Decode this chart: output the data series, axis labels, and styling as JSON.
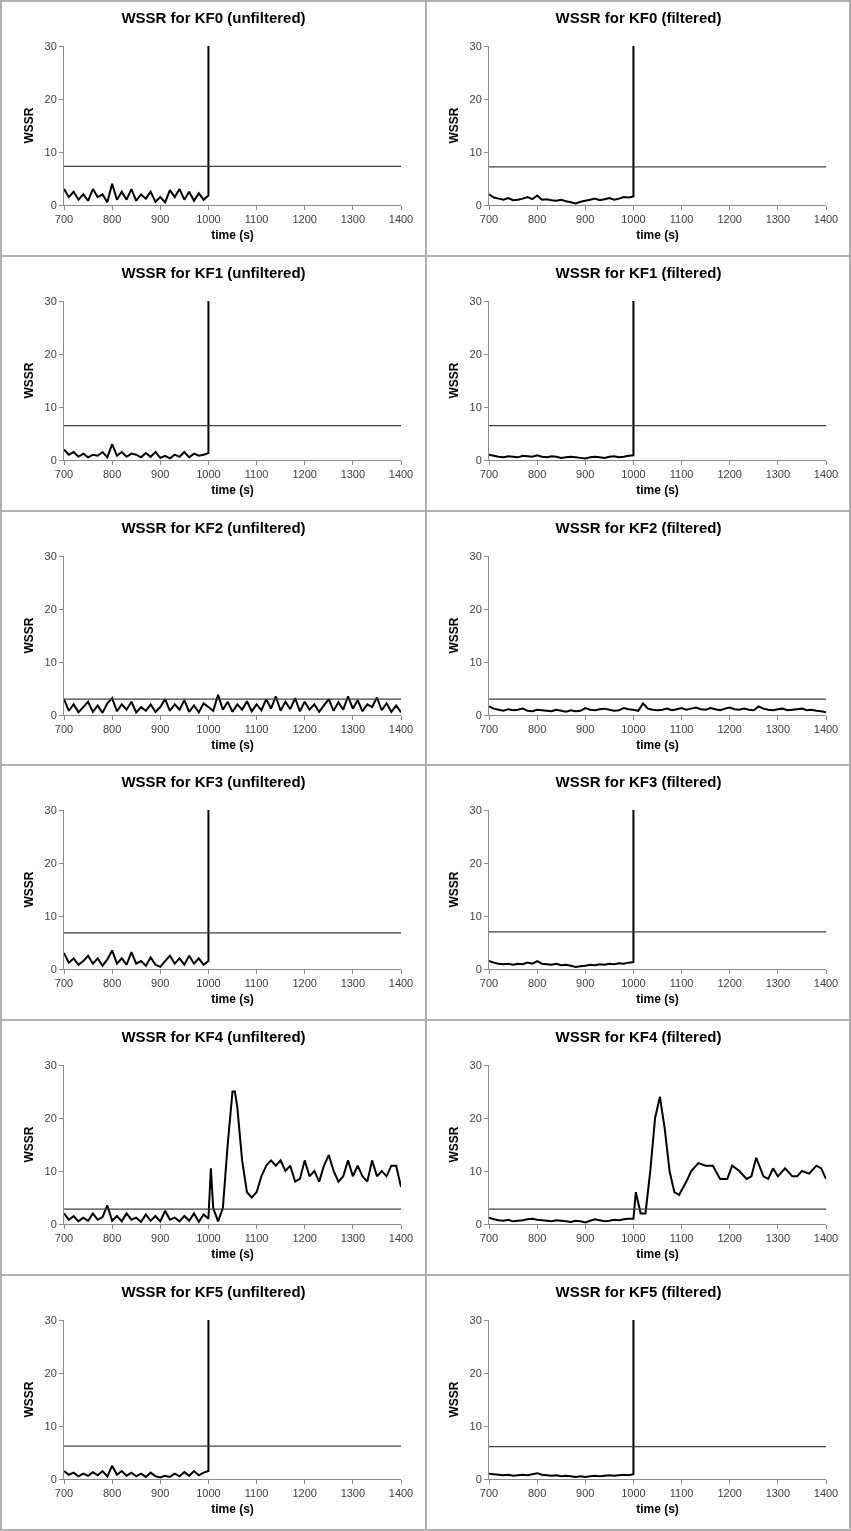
{
  "chart_data": [
    {
      "type": "line",
      "title": "WSSR for KF0 (unfiltered)",
      "xlabel": "time (s)",
      "ylabel": "WSSR",
      "xlim": [
        700,
        1400
      ],
      "xticks": [
        700,
        800,
        900,
        1000,
        1100,
        1200,
        1300,
        1400
      ],
      "ylim": [
        0,
        30
      ],
      "yticks": [
        0,
        10,
        20,
        30
      ],
      "grid": false,
      "legend": false,
      "ref_lines": [
        {
          "axis": "y",
          "value": 7.3,
          "color": "#404040"
        }
      ],
      "series": [
        {
          "color": "#000000",
          "x": [
            700,
            710,
            720,
            730,
            740,
            750,
            760,
            770,
            780,
            790,
            800,
            810,
            820,
            830,
            840,
            850,
            860,
            870,
            880,
            890,
            900,
            910,
            920,
            930,
            940,
            950,
            960,
            970,
            980,
            990,
            1000,
            1000
          ],
          "values": [
            3,
            1.5,
            2.5,
            1,
            2,
            0.8,
            3,
            1.5,
            2,
            0.5,
            4,
            1,
            2.5,
            1,
            3,
            0.8,
            2,
            1.2,
            2.5,
            0.6,
            1.5,
            0.5,
            2.8,
            1.5,
            3,
            1,
            2.5,
            0.8,
            2.2,
            1,
            1.8,
            30
          ]
        }
      ]
    },
    {
      "type": "line",
      "title": "WSSR for KF0 (filtered)",
      "xlabel": "time (s)",
      "ylabel": "WSSR",
      "xlim": [
        700,
        1400
      ],
      "xticks": [
        700,
        800,
        900,
        1000,
        1100,
        1200,
        1300,
        1400
      ],
      "ylim": [
        0,
        30
      ],
      "yticks": [
        0,
        10,
        20,
        30
      ],
      "grid": false,
      "legend": false,
      "ref_lines": [
        {
          "axis": "y",
          "value": 7.2,
          "color": "#404040"
        }
      ],
      "series": [
        {
          "color": "#000000",
          "x": [
            700,
            710,
            720,
            730,
            740,
            750,
            760,
            770,
            780,
            790,
            800,
            810,
            820,
            830,
            840,
            850,
            860,
            870,
            880,
            890,
            900,
            910,
            920,
            930,
            940,
            950,
            960,
            970,
            980,
            990,
            1000,
            1000
          ],
          "values": [
            2,
            1.4,
            1.2,
            1,
            1.3,
            0.9,
            1,
            1.2,
            1.5,
            1.1,
            1.8,
            1,
            1.1,
            0.9,
            0.8,
            1,
            0.7,
            0.5,
            0.3,
            0.6,
            0.8,
            1,
            1.2,
            0.9,
            1.1,
            1.3,
            1,
            1.2,
            1.5,
            1.4,
            1.6,
            30
          ]
        }
      ]
    },
    {
      "type": "line",
      "title": "WSSR for KF1 (unfiltered)",
      "xlabel": "time (s)",
      "ylabel": "WSSR",
      "xlim": [
        700,
        1400
      ],
      "xticks": [
        700,
        800,
        900,
        1000,
        1100,
        1200,
        1300,
        1400
      ],
      "ylim": [
        0,
        30
      ],
      "yticks": [
        0,
        10,
        20,
        30
      ],
      "grid": false,
      "legend": false,
      "ref_lines": [
        {
          "axis": "y",
          "value": 6.5,
          "color": "#404040"
        }
      ],
      "series": [
        {
          "color": "#000000",
          "x": [
            700,
            710,
            720,
            730,
            740,
            750,
            760,
            770,
            780,
            790,
            800,
            810,
            820,
            830,
            840,
            850,
            860,
            870,
            880,
            890,
            900,
            910,
            920,
            930,
            940,
            950,
            960,
            970,
            980,
            990,
            1000,
            1000
          ],
          "values": [
            2,
            1,
            1.5,
            0.6,
            1.2,
            0.5,
            1,
            0.8,
            1.5,
            0.5,
            3,
            0.8,
            1.5,
            0.6,
            1.2,
            1,
            0.5,
            1.3,
            0.6,
            1.5,
            0.4,
            0.8,
            0.3,
            1,
            0.6,
            1.5,
            0.5,
            1.2,
            0.8,
            1,
            1.3,
            30
          ]
        }
      ]
    },
    {
      "type": "line",
      "title": "WSSR for KF1 (filtered)",
      "xlabel": "time (s)",
      "ylabel": "WSSR",
      "xlim": [
        700,
        1400
      ],
      "xticks": [
        700,
        800,
        900,
        1000,
        1100,
        1200,
        1300,
        1400
      ],
      "ylim": [
        0,
        30
      ],
      "yticks": [
        0,
        10,
        20,
        30
      ],
      "grid": false,
      "legend": false,
      "ref_lines": [
        {
          "axis": "y",
          "value": 6.5,
          "color": "#404040"
        }
      ],
      "series": [
        {
          "color": "#000000",
          "x": [
            700,
            710,
            720,
            730,
            740,
            750,
            760,
            770,
            780,
            790,
            800,
            810,
            820,
            830,
            840,
            850,
            860,
            870,
            880,
            890,
            900,
            910,
            920,
            930,
            940,
            950,
            960,
            970,
            980,
            990,
            1000,
            1000
          ],
          "values": [
            1,
            0.8,
            0.6,
            0.5,
            0.7,
            0.6,
            0.5,
            0.8,
            0.7,
            0.6,
            0.9,
            0.6,
            0.5,
            0.7,
            0.6,
            0.4,
            0.5,
            0.6,
            0.5,
            0.4,
            0.3,
            0.5,
            0.6,
            0.5,
            0.4,
            0.6,
            0.7,
            0.5,
            0.6,
            0.8,
            0.9,
            30
          ]
        }
      ]
    },
    {
      "type": "line",
      "title": "WSSR for KF2 (unfiltered)",
      "xlabel": "time (s)",
      "ylabel": "WSSR",
      "xlim": [
        700,
        1400
      ],
      "xticks": [
        700,
        800,
        900,
        1000,
        1100,
        1200,
        1300,
        1400
      ],
      "ylim": [
        0,
        30
      ],
      "yticks": [
        0,
        10,
        20,
        30
      ],
      "grid": false,
      "legend": false,
      "ref_lines": [
        {
          "axis": "y",
          "value": 3,
          "color": "#404040"
        }
      ],
      "series": [
        {
          "color": "#000000",
          "x": [
            700,
            710,
            720,
            730,
            740,
            750,
            760,
            770,
            780,
            790,
            800,
            810,
            820,
            830,
            840,
            850,
            860,
            870,
            880,
            890,
            900,
            910,
            920,
            930,
            940,
            950,
            960,
            970,
            980,
            990,
            1000,
            1010,
            1020,
            1030,
            1040,
            1050,
            1060,
            1070,
            1080,
            1090,
            1100,
            1110,
            1120,
            1130,
            1140,
            1150,
            1160,
            1170,
            1180,
            1190,
            1200,
            1210,
            1220,
            1230,
            1240,
            1250,
            1260,
            1270,
            1280,
            1290,
            1300,
            1310,
            1320,
            1330,
            1340,
            1350,
            1360,
            1370,
            1380,
            1390,
            1400
          ],
          "values": [
            3,
            0.8,
            2,
            0.5,
            1.5,
            2.5,
            0.6,
            1.8,
            0.4,
            2.2,
            3.2,
            0.7,
            2,
            1,
            2.5,
            0.5,
            1.5,
            0.8,
            2,
            0.6,
            1.5,
            3,
            0.8,
            2,
            1,
            2.8,
            0.6,
            1.8,
            0.5,
            2.2,
            1.5,
            0.8,
            3.8,
            1,
            2.5,
            0.6,
            2,
            1,
            2.6,
            0.7,
            2,
            0.9,
            3,
            1.2,
            3.5,
            0.8,
            2.5,
            1.1,
            3.2,
            0.7,
            2.5,
            1,
            2,
            0.6,
            1.8,
            3,
            0.8,
            2.4,
            1,
            3.5,
            1.2,
            2.8,
            0.7,
            2,
            1.5,
            3.3,
            0.9,
            2.2,
            0.6,
            1.8,
            0.5
          ]
        }
      ]
    },
    {
      "type": "line",
      "title": "WSSR for KF2 (filtered)",
      "xlabel": "time (s)",
      "ylabel": "WSSR",
      "xlim": [
        700,
        1400
      ],
      "xticks": [
        700,
        800,
        900,
        1000,
        1100,
        1200,
        1300,
        1400
      ],
      "ylim": [
        0,
        30
      ],
      "yticks": [
        0,
        10,
        20,
        30
      ],
      "grid": false,
      "legend": false,
      "ref_lines": [
        {
          "axis": "y",
          "value": 3,
          "color": "#404040"
        }
      ],
      "series": [
        {
          "color": "#000000",
          "x": [
            700,
            710,
            720,
            730,
            740,
            750,
            760,
            770,
            780,
            790,
            800,
            810,
            820,
            830,
            840,
            850,
            860,
            870,
            880,
            890,
            900,
            910,
            920,
            930,
            940,
            950,
            960,
            970,
            980,
            990,
            1000,
            1010,
            1020,
            1030,
            1040,
            1050,
            1060,
            1070,
            1080,
            1090,
            1100,
            1110,
            1120,
            1130,
            1140,
            1150,
            1160,
            1170,
            1180,
            1190,
            1200,
            1210,
            1220,
            1230,
            1240,
            1250,
            1260,
            1270,
            1280,
            1290,
            1300,
            1310,
            1320,
            1330,
            1340,
            1350,
            1360,
            1370,
            1380,
            1390,
            1400
          ],
          "values": [
            1.6,
            1.2,
            1,
            0.8,
            1.1,
            0.9,
            1,
            1.2,
            0.8,
            0.7,
            1,
            0.9,
            0.8,
            0.7,
            1,
            0.8,
            0.6,
            0.9,
            0.7,
            0.8,
            1.3,
            1,
            0.9,
            1.1,
            1.2,
            1,
            0.8,
            0.9,
            1.3,
            1.1,
            1,
            0.8,
            2.2,
            1.2,
            1,
            0.9,
            1,
            1.2,
            0.9,
            1.1,
            1.3,
            1,
            1.2,
            1.4,
            1.1,
            1,
            1.3,
            1.1,
            0.9,
            1.2,
            1.4,
            1.1,
            1,
            1.2,
            1,
            0.9,
            1.6,
            1.2,
            1,
            0.9,
            1.1,
            1.2,
            0.9,
            1,
            1.1,
            1.2,
            0.9,
            1,
            0.8,
            0.7,
            0.5
          ]
        }
      ]
    },
    {
      "type": "line",
      "title": "WSSR for KF3 (unfiltered)",
      "xlabel": "time (s)",
      "ylabel": "WSSR",
      "xlim": [
        700,
        1400
      ],
      "xticks": [
        700,
        800,
        900,
        1000,
        1100,
        1200,
        1300,
        1400
      ],
      "ylim": [
        0,
        30
      ],
      "yticks": [
        0,
        10,
        20,
        30
      ],
      "grid": false,
      "legend": false,
      "ref_lines": [
        {
          "axis": "y",
          "value": 6.8,
          "color": "#404040"
        }
      ],
      "series": [
        {
          "color": "#000000",
          "x": [
            700,
            710,
            720,
            730,
            740,
            750,
            760,
            770,
            780,
            790,
            800,
            810,
            820,
            830,
            840,
            850,
            860,
            870,
            880,
            890,
            900,
            910,
            920,
            930,
            940,
            950,
            960,
            970,
            980,
            990,
            1000,
            1000
          ],
          "values": [
            3,
            1.2,
            2,
            0.8,
            1.5,
            2.5,
            1,
            2,
            0.6,
            1.8,
            3.5,
            1,
            2,
            0.8,
            3.2,
            1,
            1.5,
            0.6,
            2.2,
            0.8,
            0.4,
            1.5,
            2.5,
            1,
            2,
            0.8,
            2.5,
            1,
            2,
            0.8,
            1.5,
            30
          ]
        }
      ]
    },
    {
      "type": "line",
      "title": "WSSR for KF3 (filtered)",
      "xlabel": "time (s)",
      "ylabel": "WSSR",
      "xlim": [
        700,
        1400
      ],
      "xticks": [
        700,
        800,
        900,
        1000,
        1100,
        1200,
        1300,
        1400
      ],
      "ylim": [
        0,
        30
      ],
      "yticks": [
        0,
        10,
        20,
        30
      ],
      "grid": false,
      "legend": false,
      "ref_lines": [
        {
          "axis": "y",
          "value": 7,
          "color": "#404040"
        }
      ],
      "series": [
        {
          "color": "#000000",
          "x": [
            700,
            710,
            720,
            730,
            740,
            750,
            760,
            770,
            780,
            790,
            800,
            810,
            820,
            830,
            840,
            850,
            860,
            870,
            880,
            890,
            900,
            910,
            920,
            930,
            940,
            950,
            960,
            970,
            980,
            990,
            1000,
            1000
          ],
          "values": [
            1.5,
            1.2,
            1,
            0.9,
            1,
            0.8,
            1,
            0.9,
            1.2,
            1,
            1.5,
            1,
            0.9,
            0.8,
            1,
            0.7,
            0.8,
            0.6,
            0.4,
            0.5,
            0.6,
            0.8,
            0.7,
            0.9,
            0.8,
            1,
            0.9,
            1.1,
            1,
            1.2,
            1.3,
            30
          ]
        }
      ]
    },
    {
      "type": "line",
      "title": "WSSR for KF4 (unfiltered)",
      "xlabel": "time (s)",
      "ylabel": "WSSR",
      "xlim": [
        700,
        1400
      ],
      "xticks": [
        700,
        800,
        900,
        1000,
        1100,
        1200,
        1300,
        1400
      ],
      "ylim": [
        0,
        30
      ],
      "yticks": [
        0,
        10,
        20,
        30
      ],
      "grid": false,
      "legend": false,
      "ref_lines": [
        {
          "axis": "y",
          "value": 2.8,
          "color": "#404040"
        }
      ],
      "series": [
        {
          "color": "#000000",
          "x": [
            700,
            710,
            720,
            730,
            740,
            750,
            760,
            770,
            780,
            790,
            800,
            810,
            820,
            830,
            840,
            850,
            860,
            870,
            880,
            890,
            900,
            910,
            920,
            930,
            940,
            950,
            960,
            970,
            980,
            990,
            1000,
            1005,
            1010,
            1020,
            1030,
            1040,
            1050,
            1055,
            1060,
            1070,
            1080,
            1090,
            1100,
            1110,
            1120,
            1130,
            1140,
            1150,
            1160,
            1170,
            1180,
            1190,
            1200,
            1210,
            1220,
            1230,
            1240,
            1250,
            1260,
            1270,
            1280,
            1290,
            1300,
            1310,
            1320,
            1330,
            1340,
            1350,
            1360,
            1370,
            1380,
            1390,
            1400
          ],
          "values": [
            2,
            0.8,
            1.5,
            0.5,
            1.2,
            0.6,
            2,
            0.8,
            1.3,
            3.5,
            0.6,
            1.5,
            0.5,
            2,
            0.8,
            1.2,
            0.4,
            1.8,
            0.6,
            1.5,
            0.5,
            2.5,
            0.8,
            1.2,
            0.5,
            1.5,
            0.6,
            2,
            0.4,
            1.8,
            1,
            10.5,
            3,
            0.5,
            3,
            15,
            25,
            25,
            22,
            12,
            6,
            5,
            6,
            9,
            11,
            12,
            11,
            12,
            10,
            11,
            8,
            8.5,
            12,
            9,
            10,
            8,
            11,
            13,
            10,
            8,
            9,
            12,
            9,
            11,
            9,
            8,
            12,
            9,
            10,
            9,
            11,
            11,
            7
          ]
        }
      ]
    },
    {
      "type": "line",
      "title": "WSSR for KF4 (filtered)",
      "xlabel": "time (s)",
      "ylabel": "WSSR",
      "xlim": [
        700,
        1400
      ],
      "xticks": [
        700,
        800,
        900,
        1000,
        1100,
        1200,
        1300,
        1400
      ],
      "ylim": [
        0,
        30
      ],
      "yticks": [
        0,
        10,
        20,
        30
      ],
      "grid": false,
      "legend": false,
      "ref_lines": [
        {
          "axis": "y",
          "value": 2.8,
          "color": "#404040"
        }
      ],
      "series": [
        {
          "color": "#000000",
          "x": [
            700,
            710,
            720,
            730,
            740,
            750,
            760,
            770,
            780,
            790,
            800,
            810,
            820,
            830,
            840,
            850,
            860,
            870,
            880,
            890,
            900,
            910,
            920,
            930,
            940,
            950,
            960,
            970,
            980,
            990,
            1000,
            1005,
            1015,
            1025,
            1035,
            1045,
            1055,
            1065,
            1075,
            1085,
            1095,
            1110,
            1120,
            1135,
            1150,
            1165,
            1180,
            1195,
            1205,
            1220,
            1235,
            1245,
            1255,
            1270,
            1280,
            1290,
            1300,
            1315,
            1330,
            1340,
            1350,
            1365,
            1380,
            1390,
            1400
          ],
          "values": [
            1.2,
            0.9,
            0.7,
            0.6,
            0.8,
            0.5,
            0.6,
            0.7,
            0.9,
            1,
            0.8,
            0.7,
            0.6,
            0.5,
            0.7,
            0.6,
            0.5,
            0.4,
            0.6,
            0.5,
            0.3,
            0.6,
            0.9,
            0.7,
            0.5,
            0.6,
            0.8,
            0.7,
            0.9,
            1,
            1,
            6,
            2,
            2,
            10,
            20,
            24,
            18,
            10,
            6,
            5.5,
            8,
            10,
            11.5,
            11,
            11,
            8.5,
            8.5,
            11,
            10,
            8.5,
            9,
            12.5,
            9,
            8.5,
            10.5,
            9,
            10.5,
            9,
            9,
            10,
            9.5,
            11,
            10.5,
            8.5
          ]
        }
      ]
    },
    {
      "type": "line",
      "title": "WSSR for KF5 (unfiltered)",
      "xlabel": "time (s)",
      "ylabel": "WSSR",
      "xlim": [
        700,
        1400
      ],
      "xticks": [
        700,
        800,
        900,
        1000,
        1100,
        1200,
        1300,
        1400
      ],
      "ylim": [
        0,
        30
      ],
      "yticks": [
        0,
        10,
        20,
        30
      ],
      "grid": false,
      "legend": false,
      "ref_lines": [
        {
          "axis": "y",
          "value": 6.2,
          "color": "#404040"
        }
      ],
      "series": [
        {
          "color": "#000000",
          "x": [
            700,
            710,
            720,
            730,
            740,
            750,
            760,
            770,
            780,
            790,
            800,
            810,
            820,
            830,
            840,
            850,
            860,
            870,
            880,
            890,
            900,
            910,
            920,
            930,
            940,
            950,
            960,
            970,
            980,
            990,
            1000,
            1000
          ],
          "values": [
            1.5,
            0.8,
            1.2,
            0.5,
            1,
            0.6,
            1.3,
            0.7,
            1.5,
            0.5,
            2.5,
            0.8,
            1.5,
            0.6,
            1.2,
            0.5,
            1,
            0.4,
            1.2,
            0.5,
            0.3,
            0.6,
            0.4,
            1,
            0.5,
            1.3,
            0.6,
            1.5,
            0.7,
            1.2,
            1.5,
            30
          ]
        }
      ]
    },
    {
      "type": "line",
      "title": "WSSR for KF5 (filtered)",
      "xlabel": "time (s)",
      "ylabel": "WSSR",
      "xlim": [
        700,
        1400
      ],
      "xticks": [
        700,
        800,
        900,
        1000,
        1100,
        1200,
        1300,
        1400
      ],
      "ylim": [
        0,
        30
      ],
      "yticks": [
        0,
        10,
        20,
        30
      ],
      "grid": false,
      "legend": false,
      "ref_lines": [
        {
          "axis": "y",
          "value": 6.1,
          "color": "#404040"
        }
      ],
      "series": [
        {
          "color": "#000000",
          "x": [
            700,
            710,
            720,
            730,
            740,
            750,
            760,
            770,
            780,
            790,
            800,
            810,
            820,
            830,
            840,
            850,
            860,
            870,
            880,
            890,
            900,
            910,
            920,
            930,
            940,
            950,
            960,
            970,
            980,
            990,
            1000,
            1000
          ],
          "values": [
            1,
            0.9,
            0.8,
            0.7,
            0.8,
            0.6,
            0.7,
            0.8,
            0.7,
            0.9,
            1.1,
            0.8,
            0.7,
            0.6,
            0.7,
            0.5,
            0.6,
            0.5,
            0.4,
            0.5,
            0.4,
            0.5,
            0.6,
            0.5,
            0.6,
            0.7,
            0.6,
            0.7,
            0.8,
            0.7,
            0.9,
            30
          ]
        }
      ]
    }
  ]
}
